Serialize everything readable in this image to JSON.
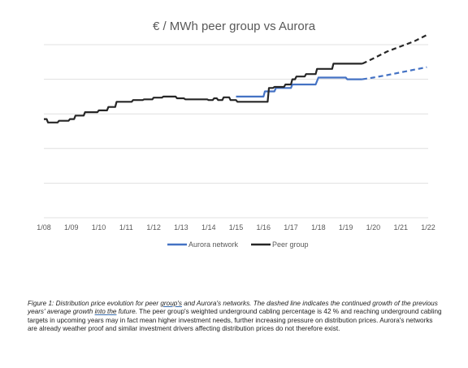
{
  "chart_data": {
    "type": "line",
    "title": "€ / MWh peer group vs Aurora",
    "x_ticks": [
      "1/08",
      "1/09",
      "1/10",
      "1/11",
      "1/12",
      "1/13",
      "1/14",
      "1/15",
      "1/16",
      "1/17",
      "1/18",
      "1/19",
      "1/20",
      "1/21",
      "1/22"
    ],
    "xlim": [
      2008.0,
      2022.0
    ],
    "ylim": [
      0,
      5
    ],
    "grid": "horizontal",
    "legend_position": "bottom",
    "series": [
      {
        "name": "Aurora network",
        "color": "#4472c4",
        "solid": [
          [
            2015.0,
            3.5
          ],
          [
            2016.0,
            3.5
          ],
          [
            2016.05,
            3.65
          ],
          [
            2016.4,
            3.65
          ],
          [
            2016.45,
            3.75
          ],
          [
            2017.0,
            3.75
          ],
          [
            2017.05,
            3.85
          ],
          [
            2017.9,
            3.85
          ],
          [
            2018.0,
            4.05
          ],
          [
            2019.0,
            4.05
          ],
          [
            2019.05,
            4.0
          ],
          [
            2019.6,
            4.0
          ]
        ],
        "dashed": [
          [
            2019.6,
            4.0
          ],
          [
            2020.0,
            4.05
          ],
          [
            2020.5,
            4.12
          ],
          [
            2021.0,
            4.2
          ],
          [
            2021.5,
            4.28
          ],
          [
            2021.95,
            4.35
          ]
        ]
      },
      {
        "name": "Peer group",
        "color": "#262626",
        "solid": [
          [
            2008.0,
            2.85
          ],
          [
            2008.1,
            2.85
          ],
          [
            2008.15,
            2.75
          ],
          [
            2008.5,
            2.75
          ],
          [
            2008.55,
            2.8
          ],
          [
            2008.9,
            2.8
          ],
          [
            2008.95,
            2.85
          ],
          [
            2009.1,
            2.85
          ],
          [
            2009.15,
            2.95
          ],
          [
            2009.45,
            2.95
          ],
          [
            2009.5,
            3.05
          ],
          [
            2009.95,
            3.05
          ],
          [
            2010.0,
            3.1
          ],
          [
            2010.3,
            3.1
          ],
          [
            2010.35,
            3.2
          ],
          [
            2010.6,
            3.2
          ],
          [
            2010.65,
            3.35
          ],
          [
            2011.2,
            3.35
          ],
          [
            2011.25,
            3.4
          ],
          [
            2011.6,
            3.4
          ],
          [
            2011.65,
            3.42
          ],
          [
            2011.95,
            3.42
          ],
          [
            2012.0,
            3.47
          ],
          [
            2012.3,
            3.47
          ],
          [
            2012.35,
            3.5
          ],
          [
            2012.8,
            3.5
          ],
          [
            2012.85,
            3.45
          ],
          [
            2013.1,
            3.45
          ],
          [
            2013.15,
            3.42
          ],
          [
            2013.95,
            3.42
          ],
          [
            2014.0,
            3.4
          ],
          [
            2014.15,
            3.4
          ],
          [
            2014.2,
            3.45
          ],
          [
            2014.3,
            3.45
          ],
          [
            2014.35,
            3.4
          ],
          [
            2014.5,
            3.4
          ],
          [
            2014.55,
            3.48
          ],
          [
            2014.75,
            3.48
          ],
          [
            2014.8,
            3.4
          ],
          [
            2015.0,
            3.4
          ],
          [
            2015.05,
            3.35
          ],
          [
            2016.15,
            3.35
          ],
          [
            2016.2,
            3.75
          ],
          [
            2016.35,
            3.75
          ],
          [
            2016.4,
            3.78
          ],
          [
            2016.75,
            3.78
          ],
          [
            2016.8,
            3.85
          ],
          [
            2017.0,
            3.85
          ],
          [
            2017.05,
            4.0
          ],
          [
            2017.15,
            4.0
          ],
          [
            2017.2,
            4.08
          ],
          [
            2017.5,
            4.08
          ],
          [
            2017.55,
            4.15
          ],
          [
            2017.9,
            4.15
          ],
          [
            2017.95,
            4.3
          ],
          [
            2018.5,
            4.3
          ],
          [
            2018.55,
            4.45
          ],
          [
            2019.6,
            4.45
          ]
        ],
        "dashed": [
          [
            2019.6,
            4.45
          ],
          [
            2020.0,
            4.6
          ],
          [
            2020.5,
            4.8
          ],
          [
            2021.0,
            4.95
          ],
          [
            2021.5,
            5.1
          ],
          [
            2021.95,
            5.28
          ]
        ]
      }
    ]
  },
  "caption": {
    "italic_part1": "Figure 1: Distribution price evolution for peer ",
    "underlined": "group's",
    "italic_part2": " and Aurora's networks. The dashed line indicates the continued growth of the previous years' average growth ",
    "underlined2": "into the",
    "italic_part3": " future.",
    "normal_part": " The peer group's weighted underground cabling percentage is 42 % and reaching underground cabling targets in upcoming years may in fact mean higher investment needs, further increasing pressure on distribution prices. Aurora's networks are already weather proof and similar investment drivers affecting distribution prices do not therefore exist."
  }
}
